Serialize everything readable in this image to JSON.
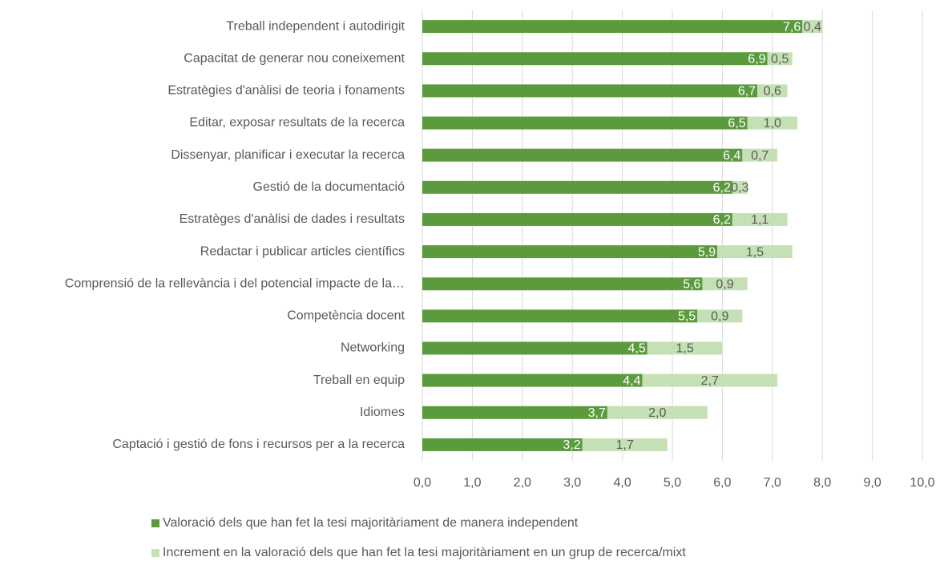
{
  "chart_data": {
    "type": "stacked-barh",
    "categories": [
      "Treball independent i autodirigit",
      "Capacitat de generar nou coneixement",
      "Estratègies d'anàlisi de teoria i fonaments",
      "Editar, exposar resultats de la recerca",
      "Dissenyar, planificar i executar la recerca",
      "Gestió de la documentació",
      "Estratèges d'anàlisi de dades i resultats",
      "Redactar i publicar articles científics",
      "Comprensió de la rellevància i del potencial impacte de la…",
      "Competència docent",
      "Networking",
      "Treball en equip",
      "Idiomes",
      "Captació i gestió de fons i recursos per a la recerca"
    ],
    "series": [
      {
        "name": "Valoració dels que han fet la tesi majoritàriament de manera independent",
        "color": "#5b9b3d",
        "values": [
          7.6,
          6.9,
          6.7,
          6.5,
          6.4,
          6.2,
          6.2,
          5.9,
          5.6,
          5.5,
          4.5,
          4.4,
          3.7,
          3.2
        ],
        "value_labels": [
          "7,6",
          "6,9",
          "6,7",
          "6,5",
          "6,4",
          "6,2",
          "6,2",
          "5,9",
          "5,6",
          "5,5",
          "4,5",
          "4,4",
          "3,7",
          "3,2"
        ]
      },
      {
        "name": "Increment en la valoració dels que han fet la tesi majoritàriament en un grup de recerca/mixt",
        "color": "#c5e0b4",
        "values": [
          0.4,
          0.5,
          0.6,
          1.0,
          0.7,
          0.3,
          1.1,
          1.5,
          0.9,
          0.9,
          1.5,
          2.7,
          2.0,
          1.7
        ],
        "value_labels": [
          "0,4",
          "0,5",
          "0,6",
          "1,0",
          "0,7",
          "0,3",
          "1,1",
          "1,5",
          "0,9",
          "0,9",
          "1,5",
          "2,7",
          "2,0",
          "1,7"
        ]
      }
    ],
    "xlim": [
      0,
      10
    ],
    "xticks": [
      {
        "value": 0,
        "label": "0,0"
      },
      {
        "value": 1,
        "label": "1,0"
      },
      {
        "value": 2,
        "label": "2,0"
      },
      {
        "value": 3,
        "label": "3,0"
      },
      {
        "value": 4,
        "label": "4,0"
      },
      {
        "value": 5,
        "label": "5,0"
      },
      {
        "value": 6,
        "label": "6,0"
      },
      {
        "value": 7,
        "label": "7,0"
      },
      {
        "value": 8,
        "label": "8,0"
      },
      {
        "value": 9,
        "label": "9,0"
      },
      {
        "value": 10,
        "label": "10,0"
      }
    ],
    "grid": true,
    "legend": "bottom"
  }
}
